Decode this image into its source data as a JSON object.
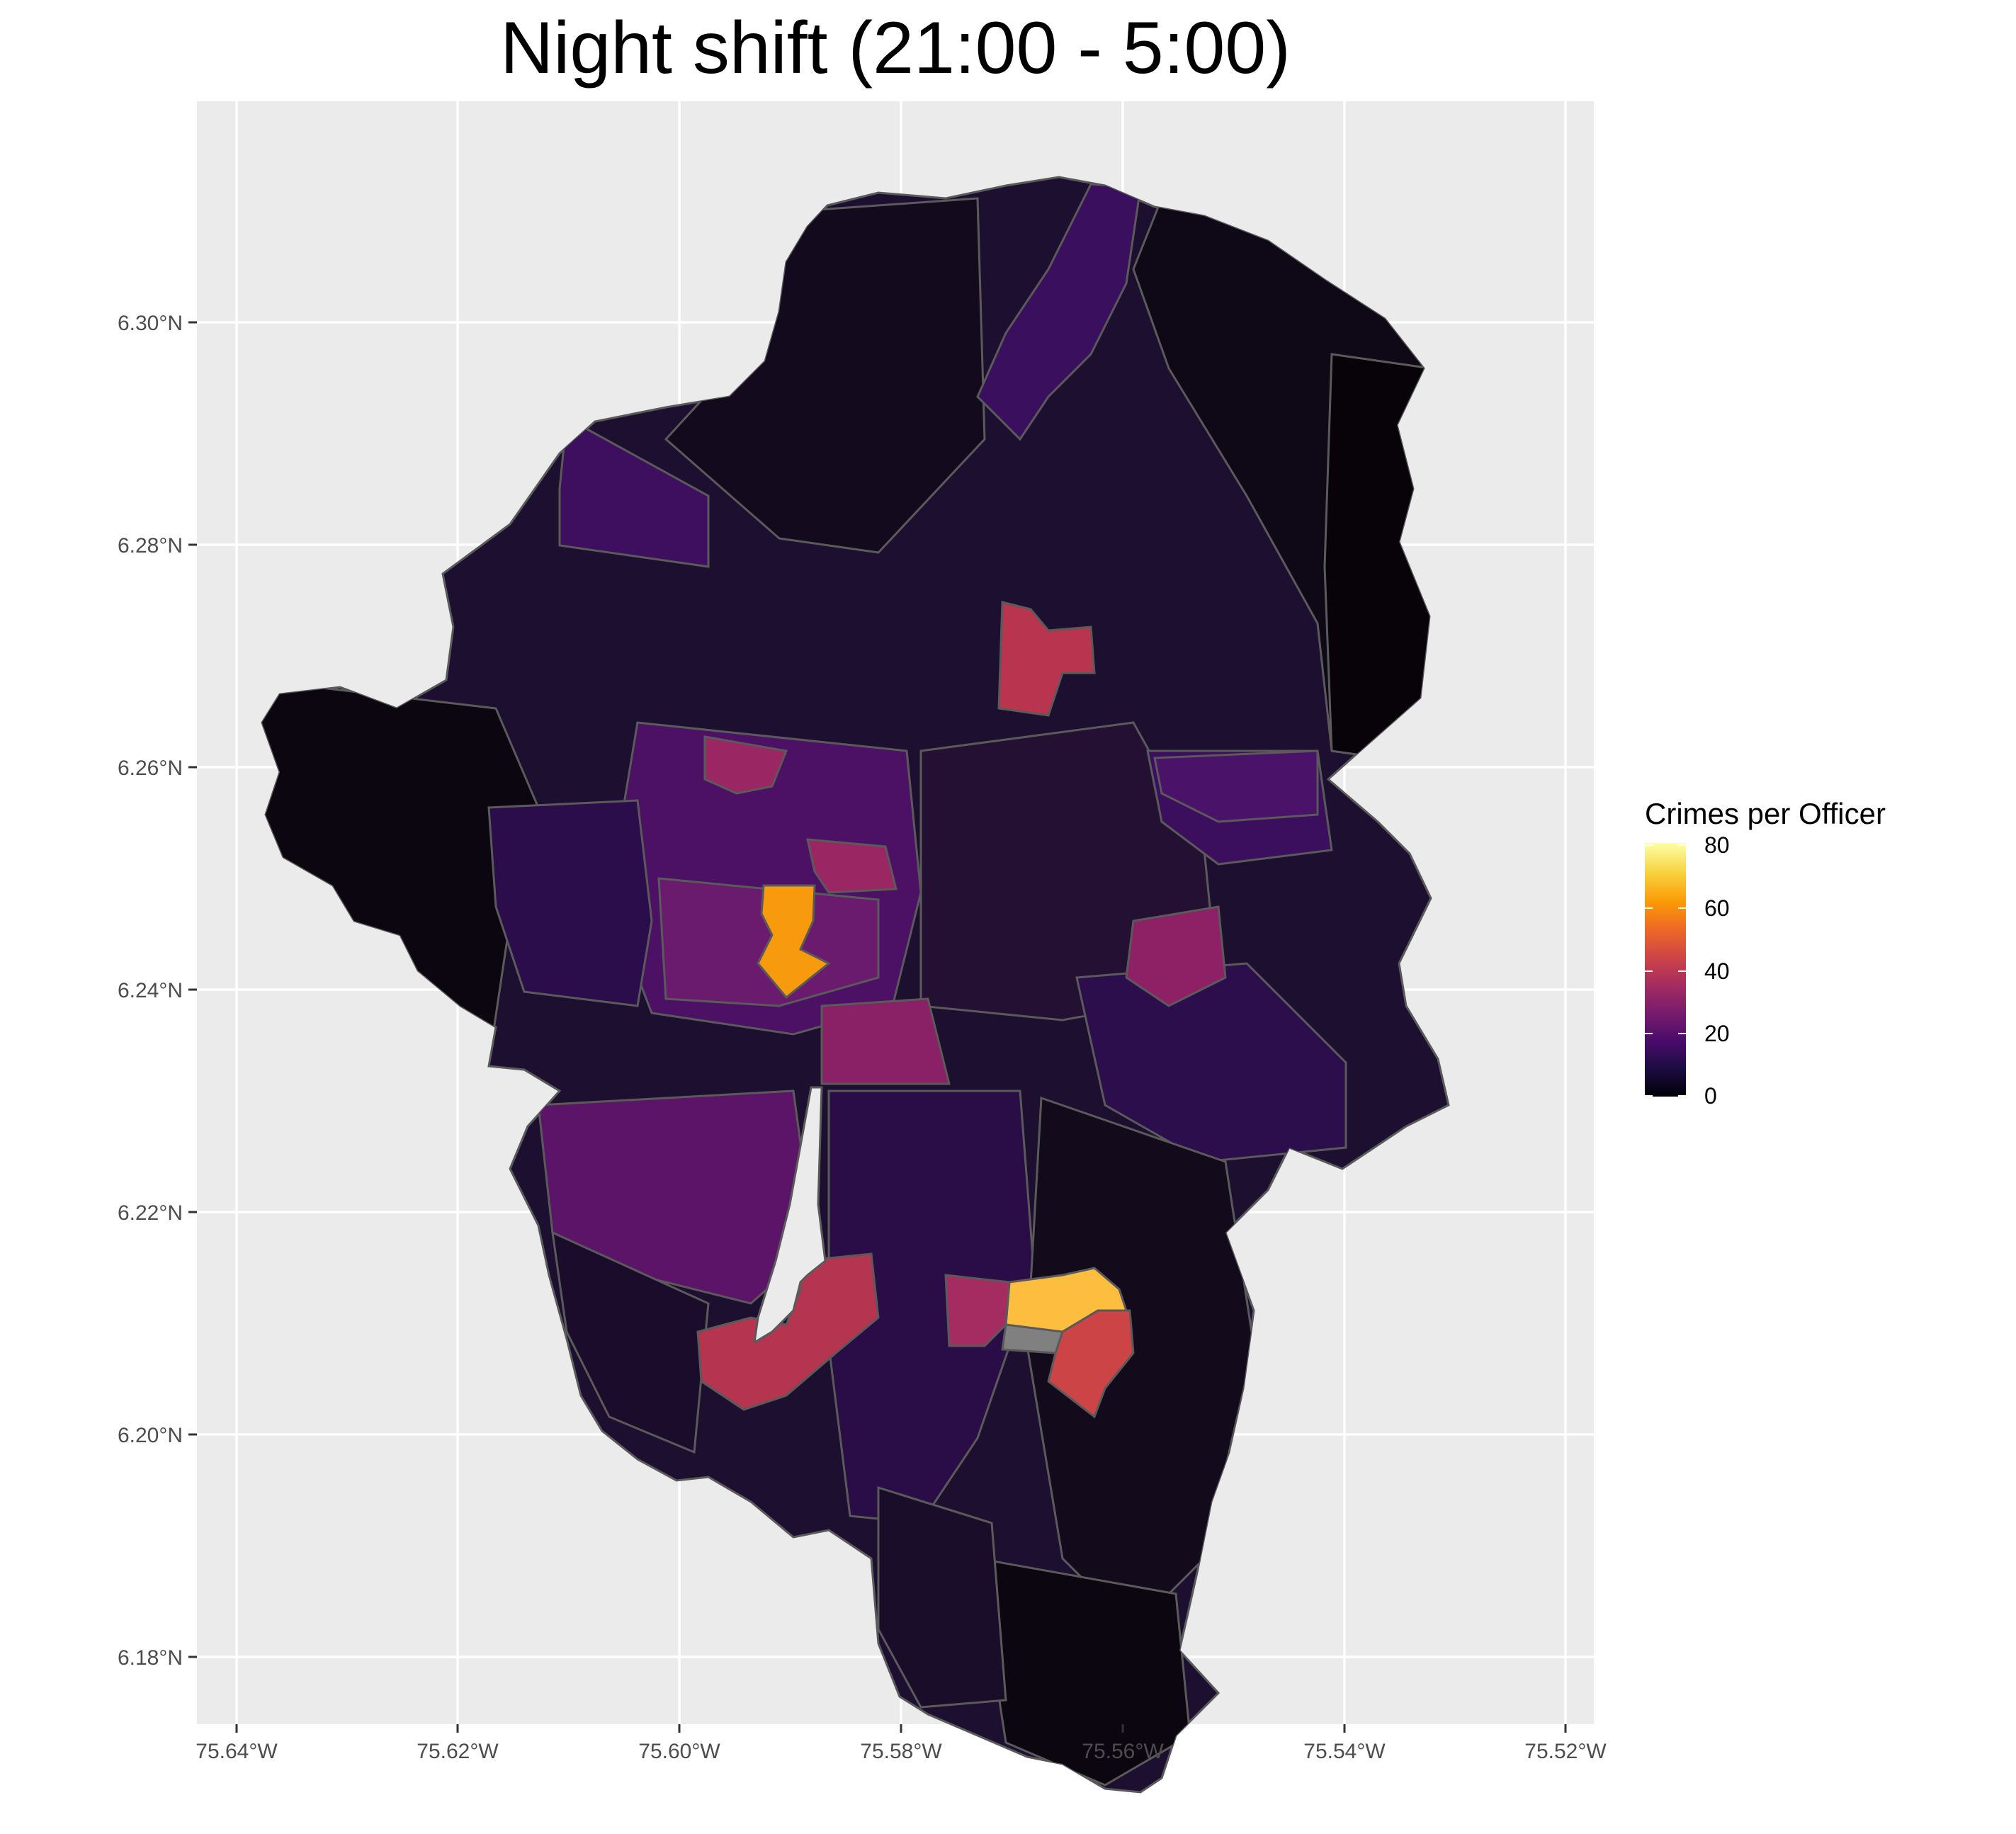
{
  "title": "Night shift (21:00 - 5:00)",
  "axes": {
    "x_ticks": [
      "75.64°W",
      "75.62°W",
      "75.60°W",
      "75.58°W",
      "75.56°W",
      "75.54°W",
      "75.52°W"
    ],
    "y_ticks": [
      "6.30°N",
      "6.28°N",
      "6.26°N",
      "6.24°N",
      "6.22°N",
      "6.20°N",
      "6.18°N"
    ]
  },
  "legend": {
    "title": "Crimes per Officer",
    "ticks": [
      "80",
      "60",
      "40",
      "20",
      "0"
    ]
  },
  "colors": {
    "panel_bg": "#ebebeb",
    "grid": "#ffffff",
    "region_border": "#5a5a5a",
    "na_fill": "#808080",
    "scale": [
      "#000004",
      "#1b0c41",
      "#4a0c6b",
      "#781c6d",
      "#a52c60",
      "#cf4446",
      "#ed6925",
      "#fb9b06",
      "#f7d13d",
      "#fcffa4"
    ]
  },
  "chart_data": {
    "type": "choropleth",
    "title": "Night shift (21:00 - 5:00)",
    "xlabel": "",
    "ylabel": "",
    "xlim": [
      -75.643,
      -75.517
    ],
    "ylim": [
      6.169,
      6.319
    ],
    "x_ticks": [
      -75.64,
      -75.62,
      -75.6,
      -75.58,
      -75.56,
      -75.54,
      -75.52
    ],
    "y_ticks": [
      6.3,
      6.28,
      6.26,
      6.24,
      6.22,
      6.2,
      6.18
    ],
    "grid": true,
    "legend": "right",
    "fill_variable": "Crimes per Officer",
    "fill_range": [
      0,
      80
    ],
    "palette": "inferno",
    "highlighted_regions": [
      {
        "lon": -75.59,
        "lat": 6.246,
        "value": 65
      },
      {
        "lon": -75.566,
        "lat": 6.213,
        "value": 72
      },
      {
        "lon": -75.562,
        "lat": 6.207,
        "value": 47
      },
      {
        "lon": -75.568,
        "lat": 6.27,
        "value": 38
      },
      {
        "lon": -75.58,
        "lat": 6.209,
        "value": 37
      }
    ]
  }
}
